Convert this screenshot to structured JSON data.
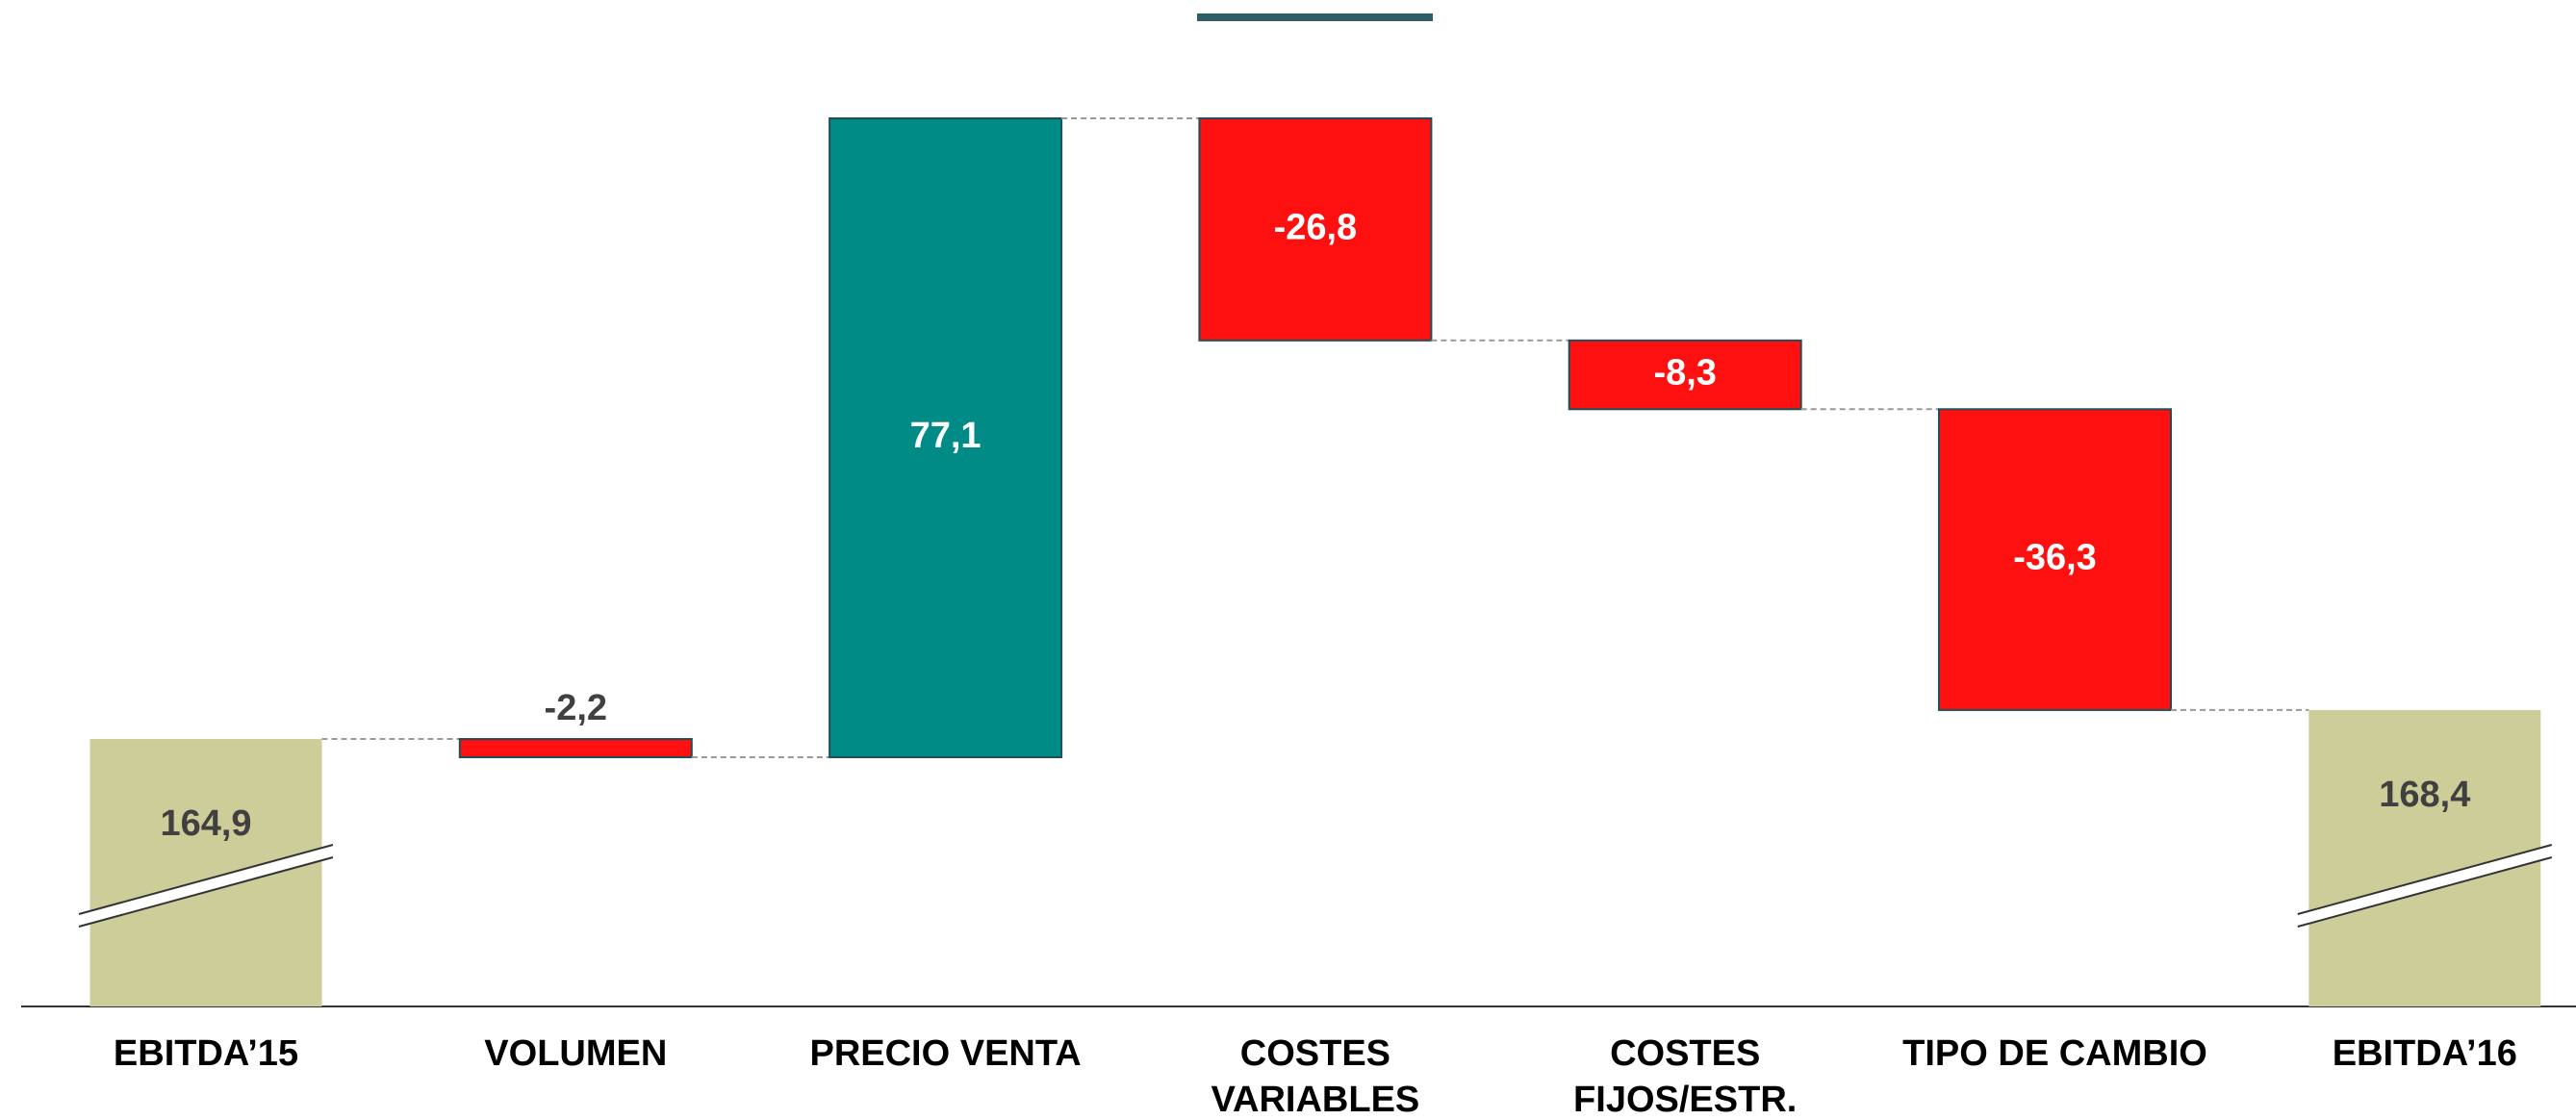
{
  "chart_data": {
    "type": "waterfall",
    "categories": [
      [
        "EBITDA’15"
      ],
      [
        "VOLUMEN"
      ],
      [
        "PRECIO VENTA"
      ],
      [
        "COSTES",
        "VARIABLES"
      ],
      [
        "COSTES",
        "FIJOS/ESTR."
      ],
      [
        "TIPO DE CAMBIO"
      ],
      [
        "EBITDA’16"
      ]
    ],
    "values": [
      164.9,
      -2.2,
      77.1,
      -26.8,
      -8.3,
      -36.3,
      168.4
    ],
    "value_labels": [
      "164,9",
      "-2,2",
      "77,1",
      "-26,8",
      "-8,3",
      "-36,3",
      "168,4"
    ],
    "totals": [
      true,
      false,
      false,
      false,
      false,
      false,
      true
    ],
    "colors": {
      "total": "#cdcd9a",
      "increase": "#008b87",
      "decrease": "#ff1010"
    },
    "broken_axis": true
  }
}
